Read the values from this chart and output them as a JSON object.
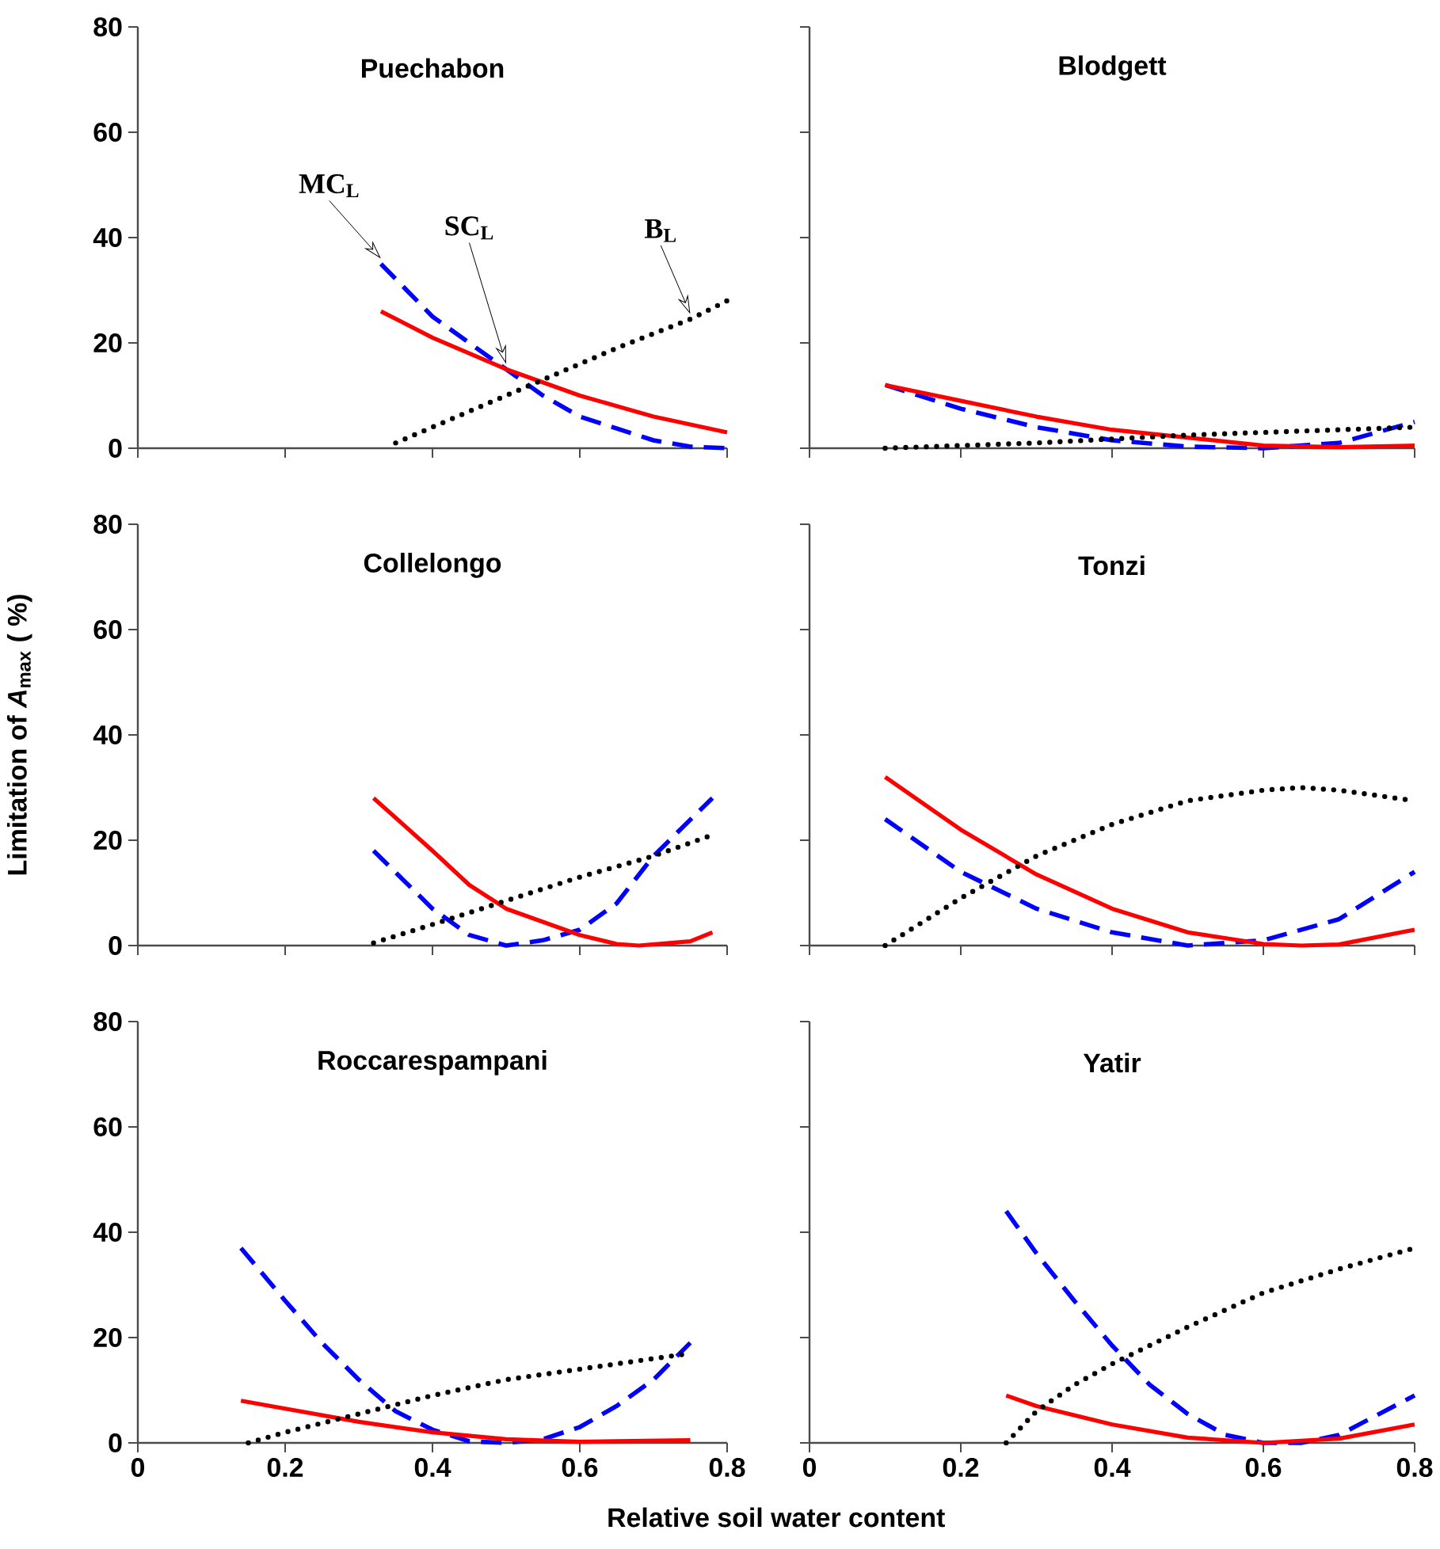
{
  "chart_data": [
    {
      "type": "line",
      "title": "Puechabon",
      "xlim": [
        0,
        0.8
      ],
      "ylim": [
        0,
        80
      ],
      "xticks": [
        0,
        0.2,
        0.4,
        0.6,
        0.8
      ],
      "yticks": [
        0,
        20,
        40,
        60,
        80
      ],
      "tick_labels": "y",
      "series": [
        {
          "name": "MC$_{L}$",
          "color": "#0000ff",
          "line_style": "dashed",
          "x": [
            0.33,
            0.4,
            0.5,
            0.55,
            0.6,
            0.7,
            0.75,
            0.8
          ],
          "values": [
            35,
            25,
            15,
            10,
            6,
            1.5,
            0.3,
            0
          ]
        },
        {
          "name": "SC$_{L}$",
          "color": "#ff0000",
          "line_style": "solid",
          "x": [
            0.33,
            0.4,
            0.5,
            0.6,
            0.7,
            0.8
          ],
          "values": [
            26,
            21,
            15,
            10,
            6,
            3
          ]
        },
        {
          "name": "B$_{L}$",
          "color": "#000000",
          "line_style": "dotted",
          "x": [
            0.35,
            0.45,
            0.55,
            0.65,
            0.75,
            0.8
          ],
          "values": [
            1,
            7,
            13,
            19,
            24.5,
            28
          ]
        }
      ]
    },
    {
      "type": "line",
      "title": "Blodgett",
      "xlim": [
        0,
        0.8
      ],
      "ylim": [
        0,
        80
      ],
      "xticks": [
        0,
        0.2,
        0.4,
        0.6,
        0.8
      ],
      "yticks": [
        0,
        20,
        40,
        60,
        80
      ],
      "tick_labels": false,
      "series": [
        {
          "color": "#0000ff",
          "line_style": "dashed",
          "x": [
            0.1,
            0.2,
            0.3,
            0.4,
            0.5,
            0.6,
            0.7,
            0.8
          ],
          "values": [
            12,
            7.5,
            4,
            1.5,
            0.3,
            0,
            1,
            5
          ]
        },
        {
          "color": "#ff0000",
          "line_style": "solid",
          "x": [
            0.1,
            0.2,
            0.3,
            0.4,
            0.5,
            0.6,
            0.7,
            0.8
          ],
          "values": [
            12,
            9,
            6,
            3.5,
            2,
            0.5,
            0.2,
            0.5
          ]
        },
        {
          "color": "#000000",
          "line_style": "dotted",
          "x": [
            0.1,
            0.3,
            0.5,
            0.7,
            0.8
          ],
          "values": [
            0,
            1,
            2.5,
            3.5,
            4
          ]
        }
      ]
    },
    {
      "type": "line",
      "title": "Collelongo",
      "ylabel": "Limitation of *A*$_{max}$ ( %)",
      "xlim": [
        0,
        0.8
      ],
      "ylim": [
        0,
        80
      ],
      "xticks": [
        0,
        0.2,
        0.4,
        0.6,
        0.8
      ],
      "yticks": [
        0,
        20,
        40,
        60,
        80
      ],
      "tick_labels": "y",
      "series": [
        {
          "color": "#0000ff",
          "line_style": "dashed",
          "x": [
            0.32,
            0.4,
            0.45,
            0.5,
            0.55,
            0.6,
            0.65,
            0.7,
            0.78
          ],
          "values": [
            18,
            7,
            2,
            0,
            1,
            3,
            8,
            17,
            28
          ]
        },
        {
          "color": "#ff0000",
          "line_style": "solid",
          "x": [
            0.32,
            0.4,
            0.45,
            0.5,
            0.55,
            0.6,
            0.65,
            0.68,
            0.75,
            0.78
          ],
          "values": [
            28,
            18,
            11.5,
            7,
            4.5,
            2,
            0.3,
            0,
            0.8,
            2.5
          ]
        },
        {
          "color": "#000000",
          "line_style": "dotted",
          "x": [
            0.32,
            0.4,
            0.5,
            0.6,
            0.7,
            0.78
          ],
          "values": [
            0.5,
            4,
            8.5,
            13,
            17,
            21
          ]
        }
      ]
    },
    {
      "type": "line",
      "title": "Tonzi",
      "xlim": [
        0,
        0.8
      ],
      "ylim": [
        0,
        80
      ],
      "xticks": [
        0,
        0.2,
        0.4,
        0.6,
        0.8
      ],
      "yticks": [
        0,
        20,
        40,
        60,
        80
      ],
      "tick_labels": false,
      "series": [
        {
          "color": "#0000ff",
          "line_style": "dashed",
          "x": [
            0.1,
            0.2,
            0.3,
            0.4,
            0.5,
            0.6,
            0.7,
            0.8
          ],
          "values": [
            24,
            14,
            7,
            2.5,
            0,
            1,
            5,
            14
          ]
        },
        {
          "color": "#ff0000",
          "line_style": "solid",
          "x": [
            0.1,
            0.2,
            0.3,
            0.4,
            0.5,
            0.6,
            0.65,
            0.7,
            0.8
          ],
          "values": [
            32,
            22,
            13.5,
            7,
            2.5,
            0.3,
            0,
            0.2,
            3
          ]
        },
        {
          "color": "#000000",
          "line_style": "dotted",
          "x": [
            0.1,
            0.2,
            0.3,
            0.4,
            0.5,
            0.6,
            0.65,
            0.7,
            0.8
          ],
          "values": [
            0,
            9,
            17,
            23,
            27.5,
            29.5,
            30,
            29.5,
            27.5
          ]
        }
      ]
    },
    {
      "type": "line",
      "title": "Roccarespampani",
      "xlabel": "Relative soil water content",
      "xlim": [
        0,
        0.8
      ],
      "ylim": [
        0,
        80
      ],
      "xticks": [
        0,
        0.2,
        0.4,
        0.6,
        0.8
      ],
      "yticks": [
        0,
        20,
        40,
        60,
        80
      ],
      "series": [
        {
          "color": "#0000ff",
          "line_style": "dashed",
          "x": [
            0.14,
            0.2,
            0.25,
            0.3,
            0.35,
            0.4,
            0.45,
            0.5,
            0.55,
            0.6,
            0.65,
            0.7,
            0.75
          ],
          "values": [
            37,
            27,
            19,
            12,
            6,
            2.5,
            0.3,
            0,
            0.7,
            3,
            7,
            12,
            19
          ]
        },
        {
          "color": "#ff0000",
          "line_style": "solid",
          "x": [
            0.14,
            0.2,
            0.3,
            0.4,
            0.5,
            0.6,
            0.75
          ],
          "values": [
            8,
            6.5,
            4,
            2,
            0.7,
            0.2,
            0.5
          ]
        },
        {
          "color": "#000000",
          "line_style": "dotted",
          "x": [
            0.15,
            0.2,
            0.3,
            0.4,
            0.5,
            0.6,
            0.7,
            0.75
          ],
          "values": [
            0,
            2,
            5.5,
            9,
            12,
            14,
            16,
            17
          ]
        }
      ]
    },
    {
      "type": "line",
      "title": "Yatir",
      "xlim": [
        0,
        0.8
      ],
      "ylim": [
        0,
        80
      ],
      "xticks": [
        0,
        0.2,
        0.4,
        0.6,
        0.8
      ],
      "yticks": [
        0,
        20,
        40,
        60,
        80
      ],
      "tick_labels": "x",
      "series": [
        {
          "color": "#0000ff",
          "line_style": "dashed",
          "x": [
            0.26,
            0.3,
            0.35,
            0.4,
            0.45,
            0.5,
            0.55,
            0.6,
            0.65,
            0.7,
            0.8
          ],
          "values": [
            44,
            36,
            27,
            18.5,
            11,
            5.5,
            1.5,
            0,
            0,
            1.5,
            9
          ]
        },
        {
          "color": "#ff0000",
          "line_style": "solid",
          "x": [
            0.26,
            0.3,
            0.4,
            0.5,
            0.6,
            0.7,
            0.8
          ],
          "values": [
            9,
            7,
            3.5,
            1,
            0,
            0.8,
            3.5
          ]
        },
        {
          "color": "#000000",
          "line_style": "dotted",
          "x": [
            0.26,
            0.3,
            0.35,
            0.4,
            0.5,
            0.6,
            0.7,
            0.8
          ],
          "values": [
            0,
            6,
            11,
            15,
            22,
            28.5,
            33,
            37
          ]
        }
      ]
    }
  ]
}
